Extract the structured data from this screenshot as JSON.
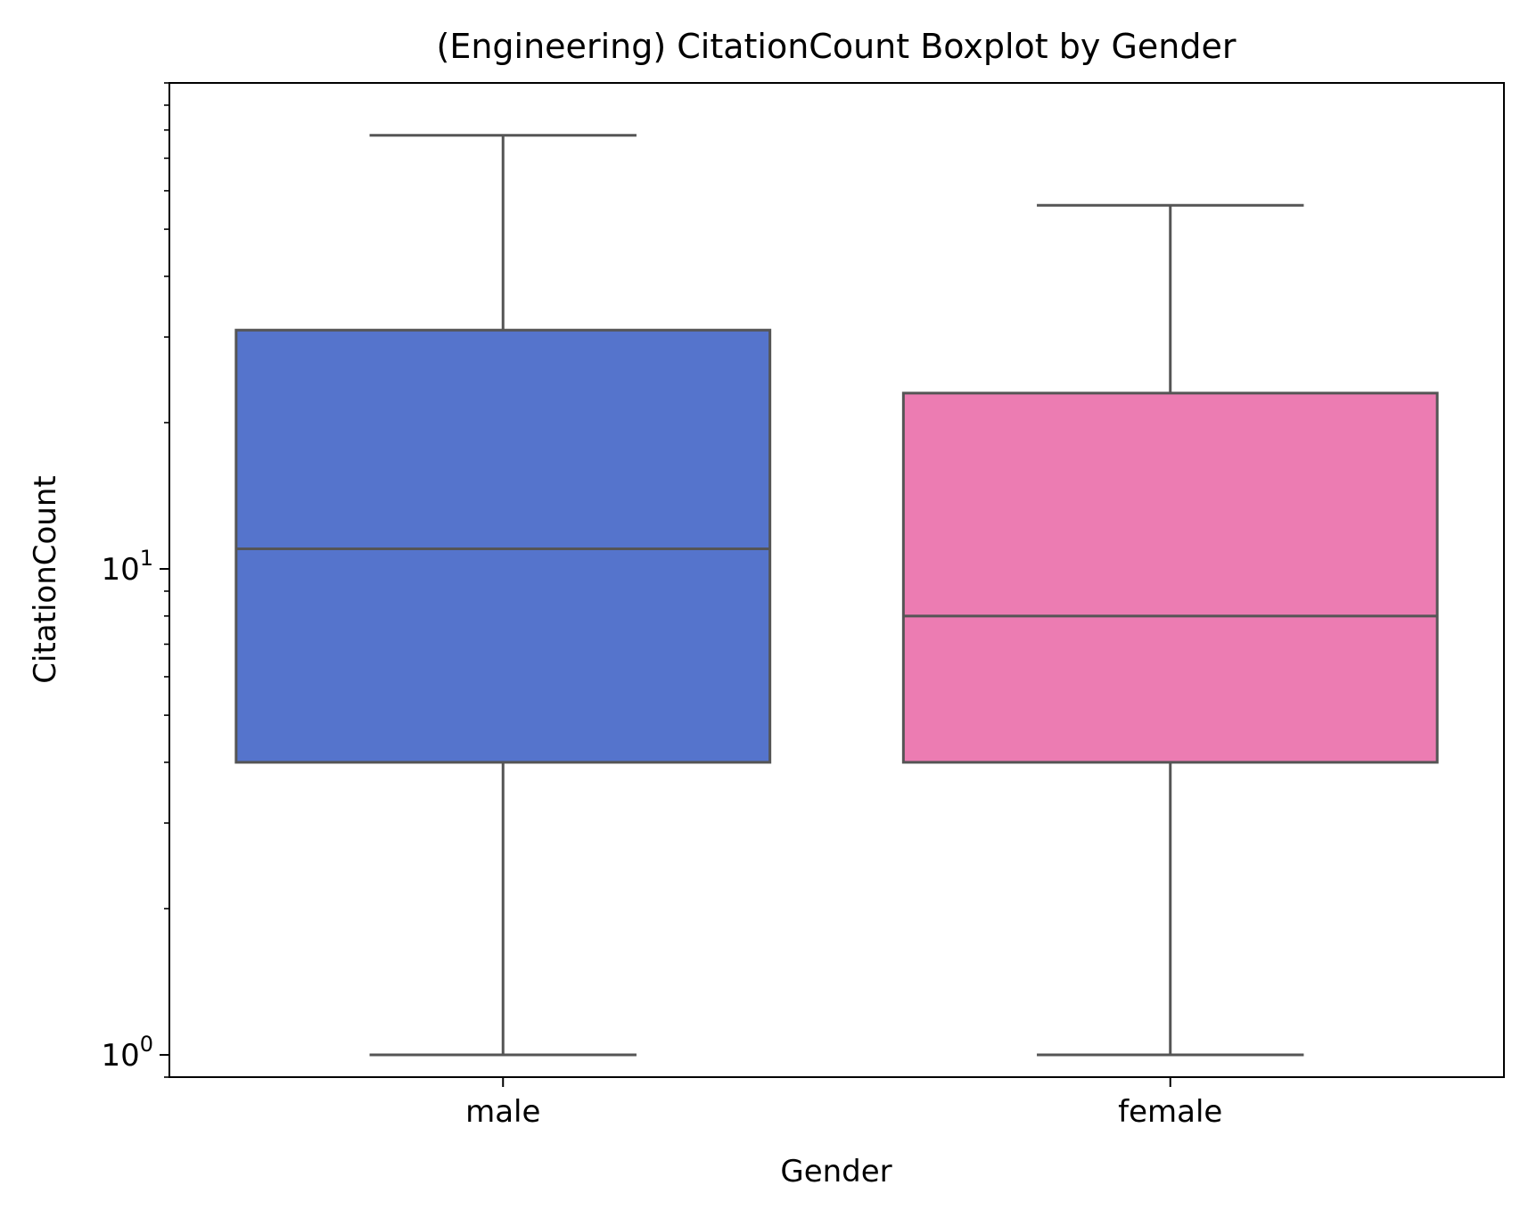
{
  "chart_data": {
    "type": "boxplot",
    "title": "(Engineering) CitationCount Boxplot by Gender",
    "xlabel": "Gender",
    "ylabel": "CitationCount",
    "yscale": "log",
    "ylim": [
      0.9,
      100
    ],
    "yticks": [
      {
        "value": 1,
        "base": "10",
        "exp": "0"
      },
      {
        "value": 10,
        "base": "10",
        "exp": "1"
      }
    ],
    "categories": [
      "male",
      "female"
    ],
    "boxes": [
      {
        "category": "male",
        "whisker_low": 1,
        "q1": 4,
        "median": 11,
        "q3": 31,
        "whisker_high": 78,
        "color": "#5574cc"
      },
      {
        "category": "female",
        "whisker_low": 1,
        "q1": 4,
        "median": 8,
        "q3": 23,
        "whisker_high": 56,
        "color": "#ec7cb2"
      }
    ],
    "line_color": "#555555",
    "grid": false,
    "legend": "none"
  }
}
